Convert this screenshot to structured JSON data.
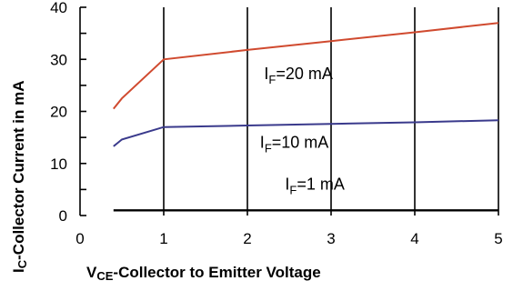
{
  "chart_data": {
    "type": "line",
    "xlabel": {
      "main": "V",
      "sub": "CE",
      "rest": "-Collector to Emitter Voltage"
    },
    "ylabel": {
      "main": "I",
      "sub": "C",
      "rest": "-Collector Current in mA"
    },
    "xlim": [
      0,
      5
    ],
    "ylim": [
      0,
      40
    ],
    "xticks": [
      0,
      1,
      2,
      3,
      4,
      5
    ],
    "yticks": [
      0,
      10,
      20,
      30,
      40
    ],
    "grid": "vertical",
    "colors": {
      "series_20": "#d04a2f",
      "series_10": "#3a3a8c",
      "series_1": "#000000",
      "grid": "#000000"
    },
    "series": [
      {
        "label": {
          "main": "I",
          "sub": "F",
          "rest": "=20 mA"
        },
        "x": [
          0.4,
          0.5,
          1.0,
          2.0,
          3.0,
          4.0,
          5.0
        ],
        "y": [
          20.5,
          22.5,
          30.0,
          31.8,
          33.5,
          35.2,
          37.0
        ]
      },
      {
        "label": {
          "main": "I",
          "sub": "F",
          "rest": "=10 mA"
        },
        "x": [
          0.4,
          0.5,
          1.0,
          2.0,
          3.0,
          4.0,
          5.0
        ],
        "y": [
          13.3,
          14.6,
          17.0,
          17.3,
          17.6,
          17.9,
          18.3
        ]
      },
      {
        "label": {
          "main": "I",
          "sub": "F",
          "rest": "=1 mA"
        },
        "x": [
          0.4,
          0.5,
          1.0,
          2.0,
          3.0,
          4.0,
          5.0
        ],
        "y": [
          1.0,
          1.0,
          1.0,
          1.0,
          1.0,
          1.0,
          1.0
        ]
      }
    ]
  }
}
